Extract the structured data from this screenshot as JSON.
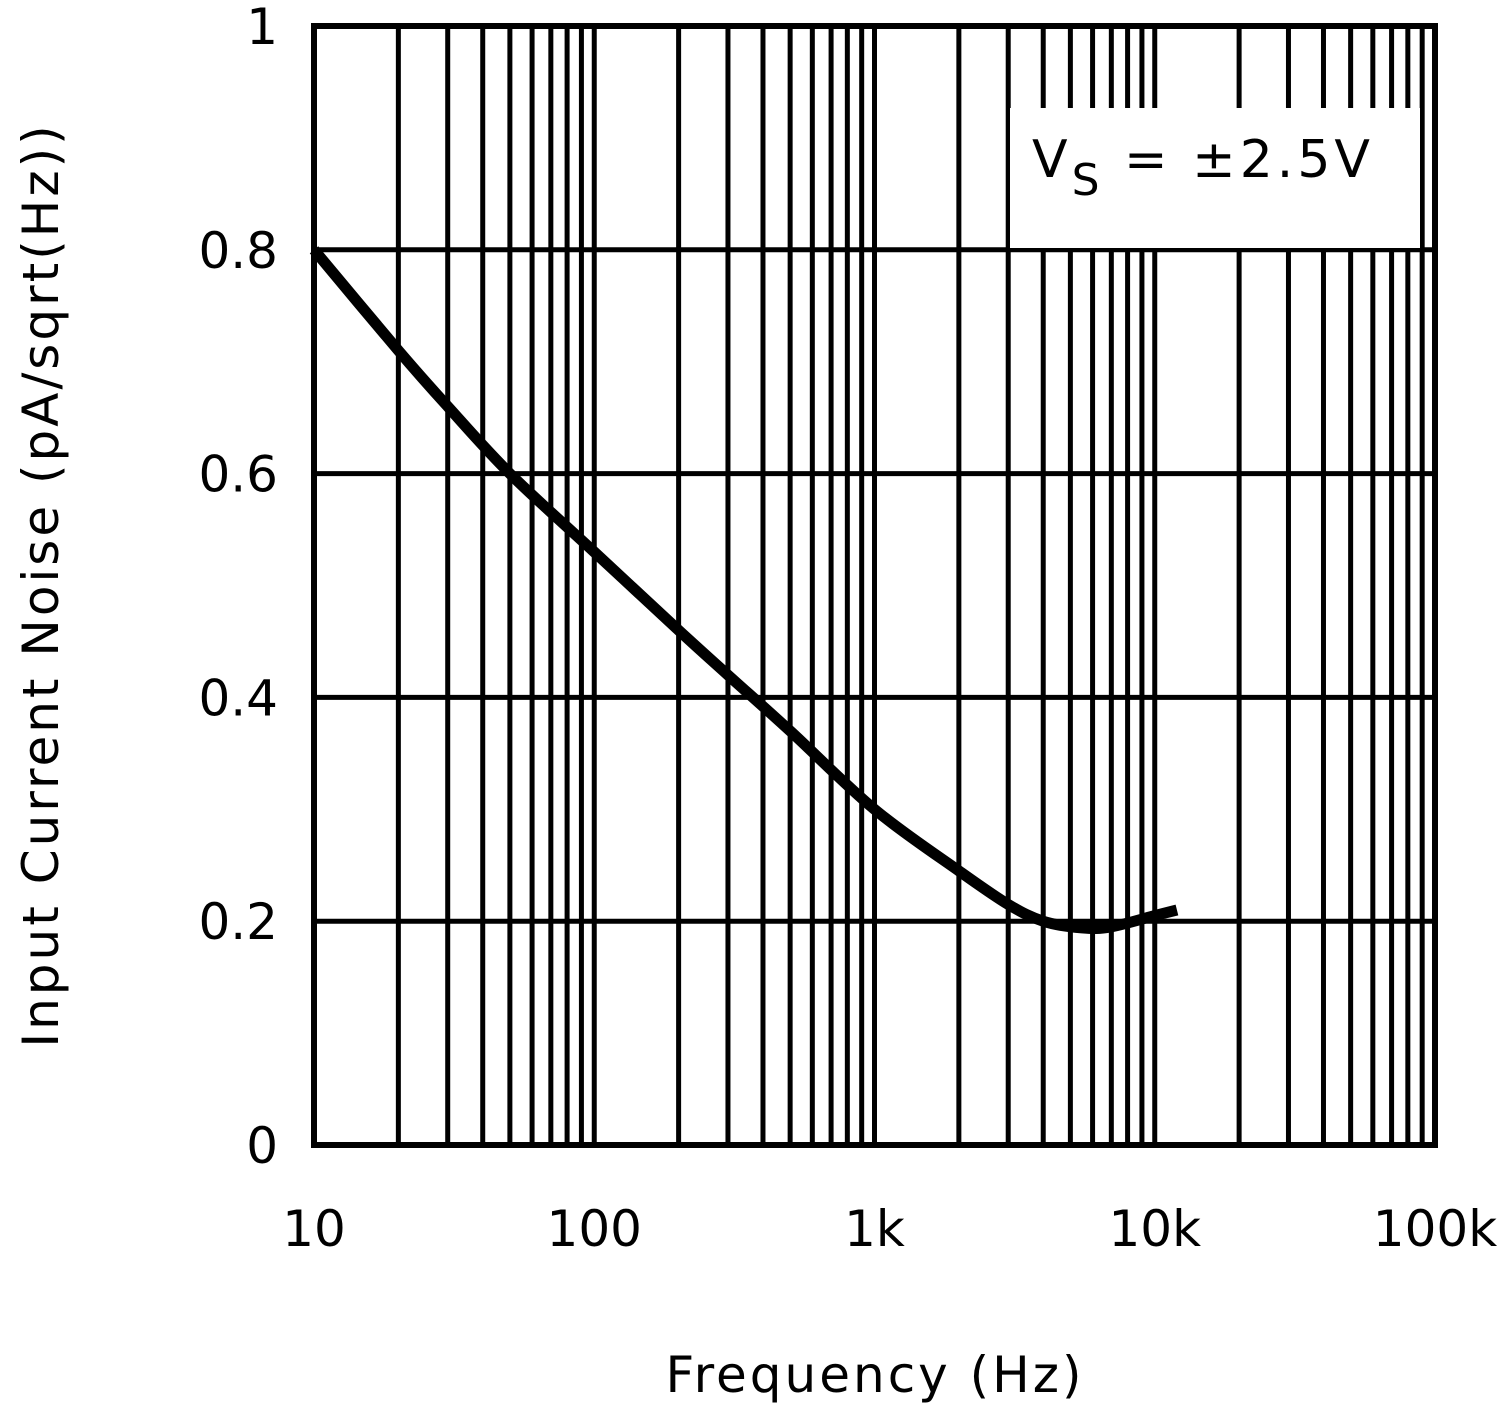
{
  "chart_data": {
    "type": "line",
    "title": "",
    "xlabel": "Frequency (Hz)",
    "ylabel": "Input Current Noise (pA/sqrt(Hz))",
    "xscale": "log",
    "xlim": [
      10,
      100000
    ],
    "ylim": [
      0,
      1
    ],
    "grid": true,
    "x_tick_labels": [
      "10",
      "100",
      "1k",
      "10k",
      "100k"
    ],
    "y_tick_labels": [
      "0",
      "0.2",
      "0.4",
      "0.6",
      "0.8",
      "1"
    ],
    "annotation": {
      "main": "V",
      "subscript": "S",
      "rest": " = ±2.5V"
    },
    "series": [
      {
        "name": "VS = ±2.5V",
        "x": [
          10,
          20,
          30,
          50,
          100,
          200,
          300,
          500,
          1000,
          2000,
          3000,
          4000,
          5500,
          7000,
          10000,
          12000
        ],
        "values": [
          0.8,
          0.71,
          0.66,
          0.6,
          0.53,
          0.46,
          0.42,
          0.37,
          0.3,
          0.245,
          0.215,
          0.2,
          0.194,
          0.195,
          0.205,
          0.21
        ]
      }
    ]
  }
}
